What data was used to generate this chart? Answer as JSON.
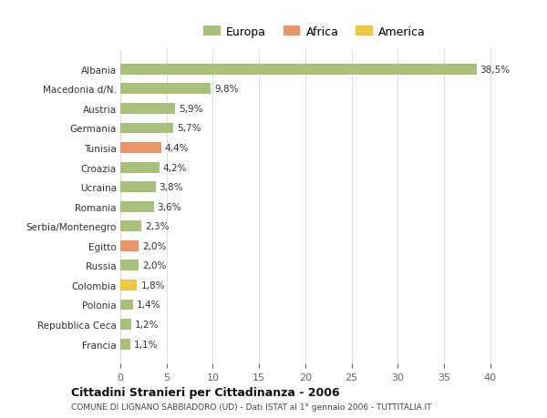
{
  "categories": [
    "Albania",
    "Macedonia d/N.",
    "Austria",
    "Germania",
    "Tunisia",
    "Croazia",
    "Ucraina",
    "Romania",
    "Serbia/Montenegro",
    "Egitto",
    "Russia",
    "Colombia",
    "Polonia",
    "Repubblica Ceca",
    "Francia"
  ],
  "values": [
    38.5,
    9.8,
    5.9,
    5.7,
    4.4,
    4.2,
    3.8,
    3.6,
    2.3,
    2.0,
    2.0,
    1.8,
    1.4,
    1.2,
    1.1
  ],
  "labels": [
    "38,5%",
    "9,8%",
    "5,9%",
    "5,7%",
    "4,4%",
    "4,2%",
    "3,8%",
    "3,6%",
    "2,3%",
    "2,0%",
    "2,0%",
    "1,8%",
    "1,4%",
    "1,2%",
    "1,1%"
  ],
  "colors": [
    "#a8c07a",
    "#a8c07a",
    "#a8c07a",
    "#a8c07a",
    "#e8956a",
    "#a8c07a",
    "#a8c07a",
    "#a8c07a",
    "#a8c07a",
    "#e8956a",
    "#a8c07a",
    "#f0c840",
    "#a8c07a",
    "#a8c07a",
    "#a8c07a"
  ],
  "legend_colors_order": [
    "Europa",
    "Africa",
    "America"
  ],
  "legend_colors": {
    "Europa": "#a8c07a",
    "Africa": "#e8956a",
    "America": "#f0c840"
  },
  "title1": "Cittadini Stranieri per Cittadinanza - 2006",
  "title2": "COMUNE DI LIGNANO SABBIADORO (UD) - Dati ISTAT al 1° gennaio 2006 - TUTTITALIA.IT",
  "xlim": [
    0,
    42
  ],
  "xticks": [
    0,
    5,
    10,
    15,
    20,
    25,
    30,
    35,
    40
  ],
  "bg_color": "#ffffff",
  "grid_color": "#e0e0e0",
  "bar_height": 0.55
}
